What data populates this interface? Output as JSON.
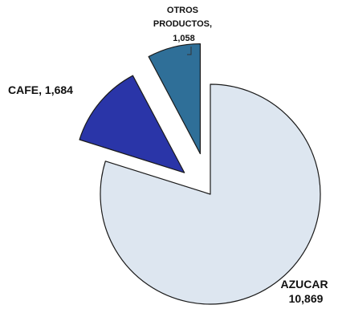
{
  "chart_data": {
    "type": "pie",
    "title": "",
    "slices": [
      {
        "label": "AZUCAR",
        "value": 10869,
        "value_text": "10,869",
        "color": "#dde6f0"
      },
      {
        "label": "CAFE",
        "value": 1684,
        "value_text": "1,684",
        "color": "#2a35a8"
      },
      {
        "label": "OTROS PRODUCTOS",
        "value": 1058,
        "value_text": "1,058",
        "color": "#2f6f98"
      }
    ],
    "exploded": true,
    "legend": "none"
  },
  "colors": {
    "outline": "#1a1a1a",
    "leader_line": "#333333"
  }
}
